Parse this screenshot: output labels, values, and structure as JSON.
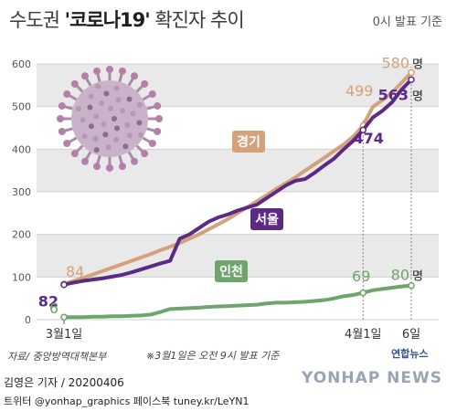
{
  "title": {
    "prefix": "수도권 ",
    "highlight": "'코로나19'",
    "suffix": " 확진자 추이"
  },
  "note_top": "0시 발표 기준",
  "source": "자료/ 중앙방역대책본부",
  "footnote": "※3월1일은 오전 9시 발표 기준",
  "logo_small": "연합뉴스",
  "reporter": "김영은 기자 / 20200406",
  "twitter": "트위터 @yonhap_graphics  페이스북 tuney.kr/LeYN1",
  "watermark": "YONHAP NEWS",
  "colors": {
    "gyeonggi": "#d4a27a",
    "seoul": "#5c2a84",
    "incheon": "#6da56a",
    "band": "#e9e9e9"
  },
  "chart_data": {
    "type": "line",
    "title": "수도권 '코로나19' 확진자 추이",
    "xlabel": "",
    "ylabel": "",
    "ylim": [
      0,
      600
    ],
    "yticks": [
      0,
      100,
      200,
      300,
      400,
      500,
      600
    ],
    "x_tick_labels": [
      {
        "label": "3월1일",
        "day": 1
      },
      {
        "label": "4월1일",
        "day": 32
      },
      {
        "label": "6일",
        "day": 37
      }
    ],
    "series": [
      {
        "name": "경기",
        "key": "gyeonggi",
        "values": [
          84,
          91,
          98,
          106,
          114,
          122,
          130,
          138,
          146,
          154,
          163,
          171,
          180,
          190,
          200,
          212,
          224,
          236,
          250,
          264,
          278,
          292,
          307,
          320,
          334,
          350,
          365,
          380,
          396,
          411,
          430,
          455,
          499,
          515,
          533,
          556,
          580
        ],
        "start_label": "84",
        "end_label": "580",
        "mid_label": "499"
      },
      {
        "name": "서울",
        "key": "seoul",
        "values": [
          82,
          87,
          91,
          94,
          97,
          101,
          105,
          111,
          118,
          125,
          132,
          138,
          190,
          200,
          215,
          230,
          240,
          247,
          256,
          263,
          270,
          285,
          300,
          315,
          326,
          330,
          345,
          362,
          378,
          400,
          420,
          445,
          474,
          490,
          510,
          540,
          563
        ],
        "start_label": "82",
        "end_label": "563",
        "mid_label": "474"
      },
      {
        "name": "인천",
        "key": "incheon",
        "values": [
          6,
          6,
          6,
          7,
          7,
          8,
          8,
          9,
          10,
          12,
          18,
          25,
          26,
          27,
          28,
          30,
          31,
          32,
          33,
          34,
          35,
          38,
          40,
          40,
          41,
          42,
          44,
          46,
          50,
          55,
          58,
          63,
          69,
          72,
          75,
          78,
          80
        ],
        "start_label": "6",
        "end_label": "80",
        "mid_label": "69"
      }
    ],
    "unit_label": "명"
  }
}
